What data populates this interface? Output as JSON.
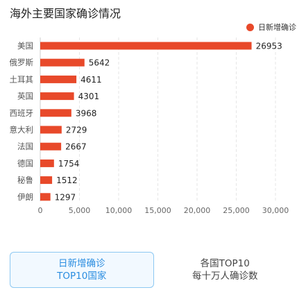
{
  "title": "海外主要国家确诊情况",
  "legend": {
    "label": "日新增确诊",
    "color": "#e8492a"
  },
  "chart_data": {
    "type": "bar",
    "orientation": "horizontal",
    "categories": [
      "美国",
      "俄罗斯",
      "土耳其",
      "英国",
      "西班牙",
      "意大利",
      "法国",
      "德国",
      "秘鲁",
      "伊朗"
    ],
    "series": [
      {
        "name": "日新增确诊",
        "values": [
          26953,
          5642,
          4611,
          4301,
          3968,
          2729,
          2667,
          1754,
          1512,
          1297
        ]
      }
    ],
    "xlim": [
      0,
      30000
    ],
    "xticks": [
      0,
      5000,
      10000,
      15000,
      20000,
      25000,
      30000
    ],
    "xtick_labels": [
      "0",
      "5,000",
      "10,000",
      "15,000",
      "20,000",
      "25,000",
      "30,000"
    ],
    "data_labels": [
      "26953",
      "5642",
      "4611",
      "4301",
      "3968",
      "2729",
      "2667",
      "1754",
      "1512",
      "1297"
    ],
    "grid": "vertical-dashed",
    "legend_position": "top-right",
    "bar_color": "#e8492a"
  },
  "tabs": [
    {
      "line1": "日新增确诊",
      "line2": "TOP10国家",
      "active": true
    },
    {
      "line1": "各国TOP10",
      "line2": "每十万人确诊数",
      "active": false
    }
  ]
}
